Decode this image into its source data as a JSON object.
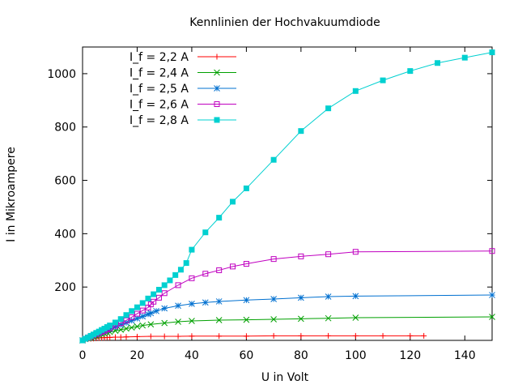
{
  "chart_data": {
    "type": "line",
    "title": "Kennlinien der Hochvakuumdiode",
    "xlabel": "U in Volt",
    "ylabel": "I in Mikroampere",
    "xlim": [
      0,
      150
    ],
    "ylim": [
      0,
      1100
    ],
    "xticks": [
      0,
      20,
      40,
      60,
      80,
      100,
      120,
      140
    ],
    "yticks": [
      200,
      400,
      600,
      800,
      1000
    ],
    "grid": false,
    "legend_position": "top-left",
    "series": [
      {
        "name": "I_f = 2,2 A",
        "color": "#ff0000",
        "marker": "plus",
        "x": [
          0,
          1,
          2,
          3,
          4,
          5,
          6,
          7,
          8,
          9,
          10,
          12,
          14,
          16,
          20,
          25,
          30,
          35,
          40,
          50,
          60,
          70,
          80,
          90,
          100,
          110,
          120,
          125
        ],
        "y": [
          0,
          3,
          5,
          6,
          7,
          8,
          9,
          10,
          10,
          11,
          11,
          12,
          12,
          13,
          14,
          15,
          15,
          15,
          16,
          16,
          16,
          17,
          17,
          17,
          17,
          17,
          17,
          17
        ]
      },
      {
        "name": "I_f = 2,4 A",
        "color": "#00a000",
        "marker": "cross",
        "x": [
          0,
          1,
          2,
          3,
          4,
          5,
          6,
          7,
          8,
          9,
          10,
          12,
          14,
          16,
          18,
          20,
          22,
          25,
          30,
          35,
          40,
          50,
          60,
          70,
          80,
          90,
          100,
          150
        ],
        "y": [
          0,
          5,
          8,
          11,
          14,
          17,
          20,
          23,
          26,
          29,
          31,
          36,
          40,
          44,
          48,
          52,
          56,
          60,
          65,
          70,
          73,
          76,
          77,
          79,
          81,
          83,
          85,
          88
        ]
      },
      {
        "name": "I_f = 2,5 A",
        "color": "#0070d0",
        "marker": "star",
        "x": [
          0,
          1,
          2,
          3,
          4,
          5,
          6,
          7,
          8,
          9,
          10,
          12,
          14,
          16,
          18,
          20,
          22,
          24,
          25,
          27,
          30,
          35,
          40,
          45,
          50,
          60,
          70,
          80,
          90,
          100,
          150
        ],
        "y": [
          0,
          6,
          10,
          14,
          18,
          22,
          26,
          30,
          34,
          38,
          42,
          50,
          58,
          66,
          74,
          82,
          90,
          98,
          102,
          110,
          120,
          130,
          137,
          142,
          146,
          151,
          155,
          160,
          164,
          166,
          170
        ]
      },
      {
        "name": "I_f = 2,6 A",
        "color": "#c000c0",
        "marker": "square-open",
        "x": [
          0,
          1,
          2,
          3,
          4,
          5,
          6,
          7,
          8,
          9,
          10,
          12,
          14,
          16,
          18,
          20,
          22,
          24,
          25,
          26,
          28,
          30,
          35,
          40,
          45,
          50,
          55,
          60,
          70,
          80,
          90,
          100,
          150
        ],
        "y": [
          0,
          6,
          11,
          16,
          20,
          24,
          28,
          32,
          36,
          41,
          45,
          55,
          65,
          75,
          87,
          100,
          112,
          123,
          135,
          145,
          160,
          177,
          207,
          233,
          250,
          263,
          277,
          287,
          305,
          315,
          323,
          332,
          335
        ]
      },
      {
        "name": "I_f = 2,8 A",
        "color": "#00d0d0",
        "marker": "square-filled",
        "x": [
          0,
          1,
          2,
          3,
          4,
          5,
          6,
          7,
          8,
          9,
          10,
          12,
          14,
          16,
          18,
          20,
          22,
          24,
          26,
          28,
          30,
          32,
          34,
          36,
          38,
          40,
          45,
          50,
          55,
          60,
          70,
          80,
          90,
          100,
          110,
          120,
          130,
          140,
          150
        ],
        "y": [
          0,
          6,
          11,
          17,
          22,
          28,
          33,
          39,
          44,
          50,
          56,
          67,
          80,
          95,
          110,
          124,
          140,
          157,
          173,
          190,
          207,
          225,
          245,
          265,
          290,
          340,
          405,
          460,
          520,
          570,
          677,
          785,
          870,
          935,
          975,
          1010,
          1040,
          1060,
          1080
        ]
      }
    ]
  }
}
